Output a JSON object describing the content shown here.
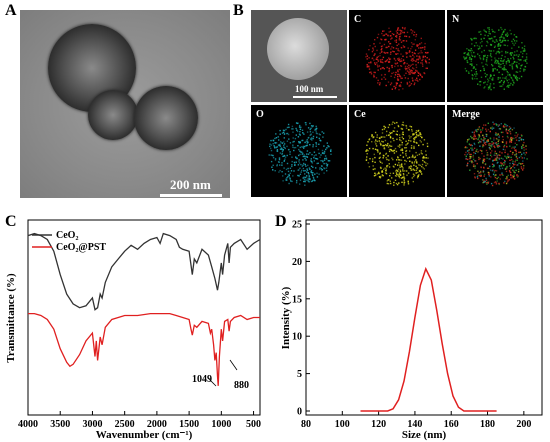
{
  "panels": {
    "a": {
      "letter": "A",
      "scale_label": "200 nm"
    },
    "b": {
      "letter": "B",
      "scale_label": "100 nm",
      "tiles": [
        {
          "label": "",
          "kind": "haadf"
        },
        {
          "label": "C",
          "kind": "map",
          "color": "#d81e1e"
        },
        {
          "label": "N",
          "kind": "map",
          "color": "#1fa81f"
        },
        {
          "label": "O",
          "kind": "map",
          "color": "#1aa0b0"
        },
        {
          "label": "Ce",
          "kind": "map",
          "color": "#d8d81e"
        },
        {
          "label": "Merge",
          "kind": "merge",
          "color": "#b04a20"
        }
      ]
    },
    "c": {
      "letter": "C"
    },
    "d": {
      "letter": "D"
    }
  },
  "chart_data": [
    {
      "type": "line",
      "xlabel": "Wavenumber (cm⁻¹)",
      "ylabel": "Transmittance (%)",
      "xlim": [
        4000,
        400
      ],
      "x_ticks": [
        4000,
        3500,
        3000,
        2500,
        2000,
        1500,
        1000,
        500
      ],
      "legend_position": "top-left",
      "series": [
        {
          "name": "CeO₂",
          "color": "#333333",
          "points": [
            [
              4000,
              0.92
            ],
            [
              3900,
              0.93
            ],
            [
              3800,
              0.92
            ],
            [
              3700,
              0.9
            ],
            [
              3600,
              0.84
            ],
            [
              3500,
              0.72
            ],
            [
              3400,
              0.62
            ],
            [
              3300,
              0.57
            ],
            [
              3200,
              0.55
            ],
            [
              3100,
              0.56
            ],
            [
              3000,
              0.6
            ],
            [
              2960,
              0.54
            ],
            [
              2920,
              0.55
            ],
            [
              2880,
              0.62
            ],
            [
              2850,
              0.6
            ],
            [
              2800,
              0.68
            ],
            [
              2700,
              0.76
            ],
            [
              2600,
              0.8
            ],
            [
              2500,
              0.84
            ],
            [
              2400,
              0.87
            ],
            [
              2300,
              0.85
            ],
            [
              2200,
              0.88
            ],
            [
              2100,
              0.9
            ],
            [
              2000,
              0.91
            ],
            [
              1950,
              0.88
            ],
            [
              1900,
              0.93
            ],
            [
              1800,
              0.92
            ],
            [
              1700,
              0.9
            ],
            [
              1650,
              0.86
            ],
            [
              1600,
              0.85
            ],
            [
              1500,
              0.84
            ],
            [
              1450,
              0.72
            ],
            [
              1420,
              0.8
            ],
            [
              1380,
              0.78
            ],
            [
              1300,
              0.85
            ],
            [
              1200,
              0.82
            ],
            [
              1150,
              0.76
            ],
            [
              1100,
              0.7
            ],
            [
              1060,
              0.64
            ],
            [
              1040,
              0.68
            ],
            [
              1000,
              0.78
            ],
            [
              980,
              0.72
            ],
            [
              950,
              0.82
            ],
            [
              900,
              0.88
            ],
            [
              880,
              0.78
            ],
            [
              860,
              0.86
            ],
            [
              800,
              0.88
            ],
            [
              700,
              0.9
            ],
            [
              600,
              0.85
            ],
            [
              500,
              0.88
            ],
            [
              400,
              0.9
            ]
          ]
        },
        {
          "name": "CeO₂@PST",
          "color": "#e02020",
          "points": [
            [
              4000,
              0.52
            ],
            [
              3900,
              0.52
            ],
            [
              3800,
              0.51
            ],
            [
              3700,
              0.49
            ],
            [
              3600,
              0.44
            ],
            [
              3500,
              0.34
            ],
            [
              3400,
              0.27
            ],
            [
              3350,
              0.25
            ],
            [
              3300,
              0.26
            ],
            [
              3200,
              0.31
            ],
            [
              3100,
              0.38
            ],
            [
              3000,
              0.42
            ],
            [
              2960,
              0.3
            ],
            [
              2940,
              0.38
            ],
            [
              2920,
              0.28
            ],
            [
              2880,
              0.4
            ],
            [
              2850,
              0.36
            ],
            [
              2800,
              0.45
            ],
            [
              2700,
              0.49
            ],
            [
              2500,
              0.51
            ],
            [
              2300,
              0.51
            ],
            [
              2100,
              0.52
            ],
            [
              2000,
              0.52
            ],
            [
              1800,
              0.52
            ],
            [
              1700,
              0.51
            ],
            [
              1600,
              0.5
            ],
            [
              1500,
              0.49
            ],
            [
              1470,
              0.44
            ],
            [
              1450,
              0.41
            ],
            [
              1420,
              0.46
            ],
            [
              1380,
              0.45
            ],
            [
              1300,
              0.48
            ],
            [
              1200,
              0.47
            ],
            [
              1170,
              0.42
            ],
            [
              1150,
              0.44
            ],
            [
              1120,
              0.36
            ],
            [
              1100,
              0.28
            ],
            [
              1080,
              0.32
            ],
            [
              1060,
              0.2
            ],
            [
              1049,
              0.15
            ],
            [
              1030,
              0.3
            ],
            [
              1000,
              0.44
            ],
            [
              980,
              0.38
            ],
            [
              950,
              0.48
            ],
            [
              900,
              0.49
            ],
            [
              880,
              0.43
            ],
            [
              860,
              0.48
            ],
            [
              800,
              0.5
            ],
            [
              700,
              0.51
            ],
            [
              600,
              0.49
            ],
            [
              500,
              0.5
            ],
            [
              400,
              0.5
            ]
          ]
        }
      ],
      "annotations": [
        "1049",
        "880"
      ]
    },
    {
      "type": "line",
      "xlabel": "Size (nm)",
      "ylabel": "Intensity (%)",
      "xlim": [
        80,
        210
      ],
      "ylim": [
        0,
        25
      ],
      "x_ticks": [
        80,
        100,
        120,
        140,
        160,
        180,
        200
      ],
      "y_ticks": [
        0,
        5,
        10,
        15,
        20,
        25
      ],
      "grid": false,
      "series": [
        {
          "color": "#e02020",
          "points": [
            [
              110,
              0
            ],
            [
              125,
              0
            ],
            [
              128,
              0.3
            ],
            [
              131,
              1.5
            ],
            [
              134,
              4
            ],
            [
              137,
              8
            ],
            [
              140,
              12.5
            ],
            [
              143,
              16.8
            ],
            [
              146,
              19.0
            ],
            [
              149,
              17.5
            ],
            [
              152,
              13.5
            ],
            [
              155,
              9
            ],
            [
              158,
              5
            ],
            [
              161,
              2
            ],
            [
              164,
              0.5
            ],
            [
              167,
              0
            ],
            [
              185,
              0
            ]
          ]
        }
      ]
    }
  ]
}
